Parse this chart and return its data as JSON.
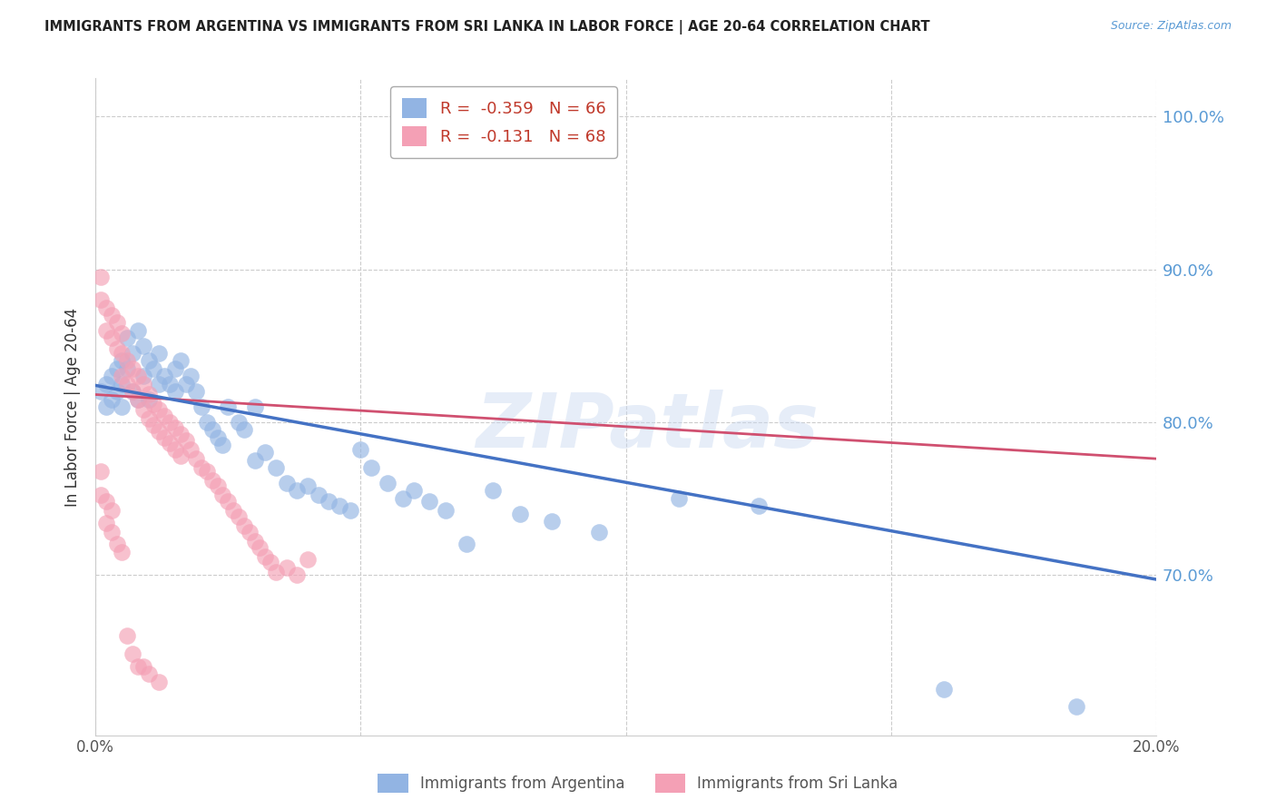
{
  "title": "IMMIGRANTS FROM ARGENTINA VS IMMIGRANTS FROM SRI LANKA IN LABOR FORCE | AGE 20-64 CORRELATION CHART",
  "source": "Source: ZipAtlas.com",
  "ylabel": "In Labor Force | Age 20-64",
  "x_min": 0.0,
  "x_max": 0.2,
  "y_min": 0.595,
  "y_max": 1.025,
  "y_ticks_right": [
    1.0,
    0.9,
    0.8,
    0.7
  ],
  "y_tick_labels_right": [
    "100.0%",
    "90.0%",
    "80.0%",
    "70.0%"
  ],
  "x_ticks": [
    0.0,
    0.05,
    0.1,
    0.15,
    0.2
  ],
  "x_tick_labels": [
    "0.0%",
    "",
    "",
    "",
    "20.0%"
  ],
  "argentina_R": -0.359,
  "argentina_N": 66,
  "srilanka_R": -0.131,
  "srilanka_N": 68,
  "argentina_color": "#92b4e3",
  "srilanka_color": "#f4a0b5",
  "argentina_line_color": "#4472c4",
  "srilanka_line_color": "#d05070",
  "watermark": "ZIPatlas",
  "argentina_trend_x0": 0.0,
  "argentina_trend_y0": 0.824,
  "argentina_trend_x1": 0.2,
  "argentina_trend_y1": 0.697,
  "srilanka_trend_x0": 0.0,
  "srilanka_trend_y0": 0.818,
  "srilanka_trend_x1": 0.2,
  "srilanka_trend_y1": 0.776,
  "argentina_scatter_x": [
    0.001,
    0.002,
    0.002,
    0.003,
    0.003,
    0.004,
    0.004,
    0.005,
    0.005,
    0.005,
    0.006,
    0.006,
    0.007,
    0.007,
    0.008,
    0.008,
    0.009,
    0.009,
    0.01,
    0.01,
    0.011,
    0.012,
    0.012,
    0.013,
    0.014,
    0.015,
    0.015,
    0.016,
    0.017,
    0.018,
    0.019,
    0.02,
    0.021,
    0.022,
    0.023,
    0.024,
    0.025,
    0.027,
    0.028,
    0.03,
    0.03,
    0.032,
    0.034,
    0.036,
    0.038,
    0.04,
    0.042,
    0.044,
    0.046,
    0.048,
    0.05,
    0.052,
    0.055,
    0.058,
    0.06,
    0.063,
    0.066,
    0.07,
    0.075,
    0.08,
    0.086,
    0.095,
    0.11,
    0.125,
    0.16,
    0.185
  ],
  "argentina_scatter_y": [
    0.82,
    0.81,
    0.825,
    0.83,
    0.815,
    0.835,
    0.82,
    0.84,
    0.825,
    0.81,
    0.855,
    0.835,
    0.845,
    0.82,
    0.86,
    0.815,
    0.85,
    0.83,
    0.84,
    0.815,
    0.835,
    0.845,
    0.825,
    0.83,
    0.825,
    0.835,
    0.82,
    0.84,
    0.825,
    0.83,
    0.82,
    0.81,
    0.8,
    0.795,
    0.79,
    0.785,
    0.81,
    0.8,
    0.795,
    0.81,
    0.775,
    0.78,
    0.77,
    0.76,
    0.755,
    0.758,
    0.752,
    0.748,
    0.745,
    0.742,
    0.782,
    0.77,
    0.76,
    0.75,
    0.755,
    0.748,
    0.742,
    0.72,
    0.755,
    0.74,
    0.735,
    0.728,
    0.75,
    0.745,
    0.625,
    0.614
  ],
  "srilanka_scatter_x": [
    0.001,
    0.001,
    0.002,
    0.002,
    0.003,
    0.003,
    0.004,
    0.004,
    0.005,
    0.005,
    0.005,
    0.006,
    0.006,
    0.007,
    0.007,
    0.008,
    0.008,
    0.009,
    0.009,
    0.01,
    0.01,
    0.011,
    0.011,
    0.012,
    0.012,
    0.013,
    0.013,
    0.014,
    0.014,
    0.015,
    0.015,
    0.016,
    0.016,
    0.017,
    0.018,
    0.019,
    0.02,
    0.021,
    0.022,
    0.023,
    0.024,
    0.025,
    0.026,
    0.027,
    0.028,
    0.029,
    0.03,
    0.031,
    0.032,
    0.033,
    0.034,
    0.036,
    0.038,
    0.04,
    0.001,
    0.001,
    0.002,
    0.002,
    0.003,
    0.003,
    0.004,
    0.005,
    0.006,
    0.007,
    0.008,
    0.009,
    0.01,
    0.012
  ],
  "srilanka_scatter_y": [
    0.895,
    0.88,
    0.875,
    0.86,
    0.87,
    0.855,
    0.865,
    0.848,
    0.858,
    0.845,
    0.83,
    0.84,
    0.825,
    0.835,
    0.82,
    0.83,
    0.815,
    0.825,
    0.808,
    0.818,
    0.802,
    0.812,
    0.798,
    0.808,
    0.794,
    0.804,
    0.79,
    0.8,
    0.786,
    0.796,
    0.782,
    0.792,
    0.778,
    0.788,
    0.782,
    0.776,
    0.77,
    0.768,
    0.762,
    0.758,
    0.752,
    0.748,
    0.742,
    0.738,
    0.732,
    0.728,
    0.722,
    0.718,
    0.712,
    0.708,
    0.702,
    0.705,
    0.7,
    0.71,
    0.768,
    0.752,
    0.748,
    0.734,
    0.742,
    0.728,
    0.72,
    0.715,
    0.66,
    0.648,
    0.64,
    0.64,
    0.635,
    0.63
  ]
}
